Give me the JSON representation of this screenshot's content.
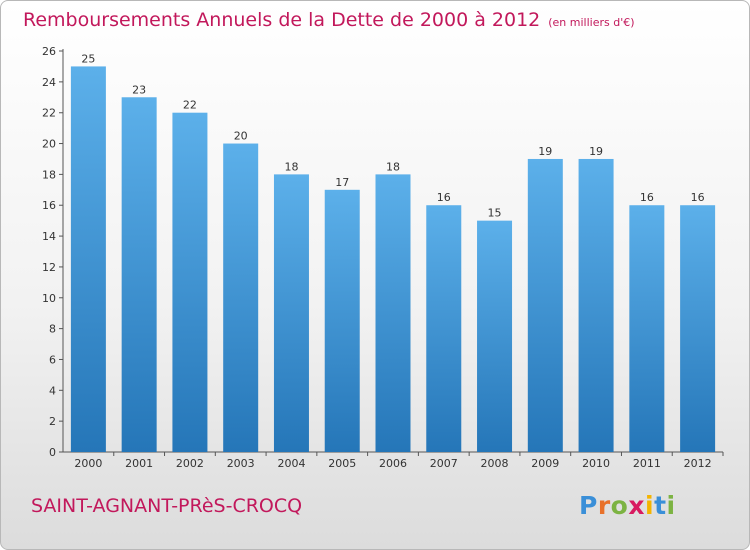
{
  "title": "Remboursements Annuels de la Dette de 2000 à 2012",
  "unit_note": "(en milliers d'€)",
  "commune": "SAINT-AGNANT-PRèS-CROCQ",
  "logo": {
    "text": "Proxiti",
    "letters": [
      {
        "ch": "P",
        "color": "#3a8fd8"
      },
      {
        "ch": "r",
        "color": "#e8712a"
      },
      {
        "ch": "o",
        "color": "#7cb342"
      },
      {
        "ch": "x",
        "color": "#d81b60"
      },
      {
        "ch": "i",
        "color": "#f4b400"
      },
      {
        "ch": "t",
        "color": "#3a8fd8"
      },
      {
        "ch": "i",
        "color": "#7cb342"
      }
    ]
  },
  "colors": {
    "title": "#c2185b",
    "bar_top": "#5cb0ea",
    "bar_bottom": "#2576b8"
  },
  "chart_data": {
    "type": "bar",
    "title": "Remboursements Annuels de la Dette de 2000 à 2012",
    "xlabel": "",
    "ylabel": "en milliers d'€",
    "categories": [
      "2000",
      "2001",
      "2002",
      "2003",
      "2004",
      "2005",
      "2006",
      "2007",
      "2008",
      "2009",
      "2010",
      "2011",
      "2012"
    ],
    "values": [
      25,
      23,
      22,
      20,
      18,
      17,
      18,
      16,
      15,
      19,
      19,
      16,
      16
    ],
    "ylim": [
      0,
      26
    ],
    "yticks": [
      0,
      2,
      4,
      6,
      8,
      10,
      12,
      14,
      16,
      18,
      20,
      22,
      24,
      26
    ],
    "grid": false,
    "legend": "none"
  }
}
